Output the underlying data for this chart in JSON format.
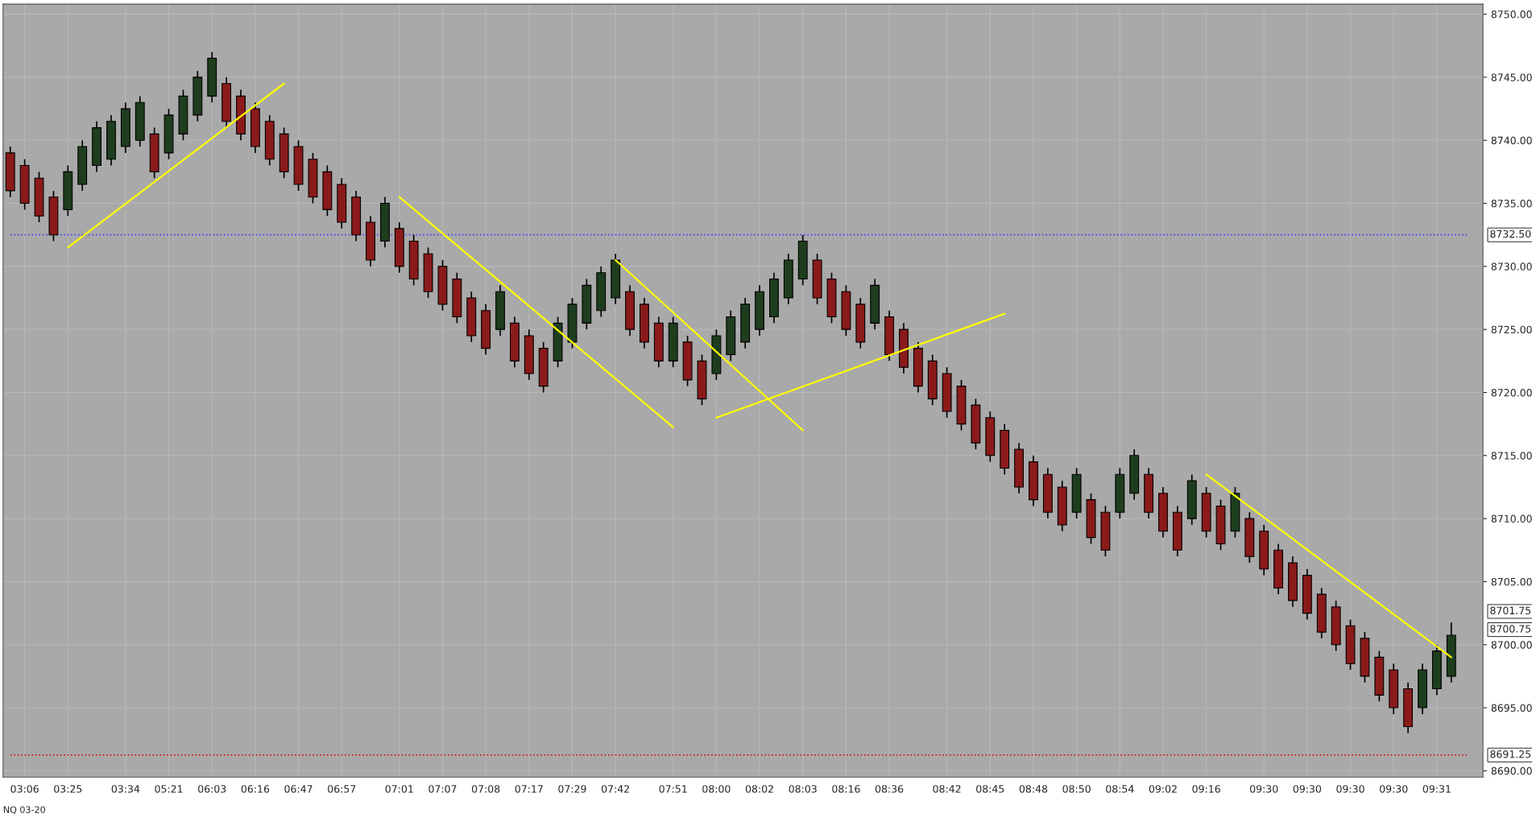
{
  "chart_data": {
    "type": "candlestick",
    "categories": [
      null,
      "03:06",
      null,
      null,
      "03:25",
      null,
      null,
      null,
      "03:34",
      null,
      null,
      "05:21",
      null,
      null,
      "06:03",
      null,
      null,
      "06:16",
      null,
      null,
      "06:47",
      null,
      null,
      "06:57",
      null,
      null,
      null,
      "07:01",
      null,
      null,
      "07:07",
      null,
      null,
      "07:08",
      null,
      null,
      "07:17",
      null,
      null,
      "07:29",
      null,
      null,
      "07:42",
      null,
      null,
      null,
      "07:51",
      null,
      null,
      "08:00",
      null,
      null,
      "08:02",
      null,
      null,
      "08:03",
      null,
      null,
      "08:16",
      null,
      null,
      "08:36",
      null,
      null,
      null,
      "08:42",
      null,
      null,
      "08:45",
      null,
      null,
      "08:48",
      null,
      null,
      "08:50",
      null,
      null,
      "08:54",
      null,
      null,
      "09:02",
      null,
      null,
      "09:16",
      null,
      null,
      null,
      "09:30",
      null,
      null,
      "09:30",
      null,
      null,
      "09:30",
      null,
      null,
      "09:30",
      null,
      null,
      "09:31",
      null
    ],
    "ohlc": [
      [
        8739,
        8739.5,
        8735.5,
        8736
      ],
      [
        8738,
        8738.5,
        8734.5,
        8735
      ],
      [
        8737,
        8737.5,
        8733.5,
        8734
      ],
      [
        8735.5,
        8736,
        8732,
        8732.5
      ],
      [
        8734.5,
        8738,
        8734,
        8737.5
      ],
      [
        8736.5,
        8740,
        8736,
        8739.5
      ],
      [
        8738,
        8741.5,
        8737.5,
        8741
      ],
      [
        8738.5,
        8742,
        8738,
        8741.5
      ],
      [
        8739.5,
        8743,
        8739,
        8742.5
      ],
      [
        8740,
        8743.5,
        8739.5,
        8743
      ],
      [
        8740.5,
        8741,
        8737,
        8737.5
      ],
      [
        8739,
        8742.5,
        8738.5,
        8742
      ],
      [
        8740.5,
        8744,
        8740,
        8743.5
      ],
      [
        8742,
        8745.5,
        8741.5,
        8745
      ],
      [
        8743.5,
        8747,
        8743,
        8746.5
      ],
      [
        8744.5,
        8745,
        8741,
        8741.5
      ],
      [
        8743.5,
        8744,
        8740,
        8740.5
      ],
      [
        8742.5,
        8743,
        8739,
        8739.5
      ],
      [
        8741.5,
        8742,
        8738,
        8738.5
      ],
      [
        8740.5,
        8741,
        8737,
        8737.5
      ],
      [
        8739.5,
        8740,
        8736,
        8736.5
      ],
      [
        8738.5,
        8739,
        8735,
        8735.5
      ],
      [
        8737.5,
        8738,
        8734,
        8734.5
      ],
      [
        8736.5,
        8737,
        8733,
        8733.5
      ],
      [
        8735.5,
        8736,
        8732,
        8732.5
      ],
      [
        8733.5,
        8734,
        8730,
        8730.5
      ],
      [
        8732,
        8735.5,
        8731.5,
        8735
      ],
      [
        8733,
        8733.5,
        8729.5,
        8730
      ],
      [
        8732,
        8732.5,
        8728.5,
        8729
      ],
      [
        8731,
        8731.5,
        8727.5,
        8728
      ],
      [
        8730,
        8730.5,
        8726.5,
        8727
      ],
      [
        8729,
        8729.5,
        8725.5,
        8726
      ],
      [
        8727.5,
        8728,
        8724,
        8724.5
      ],
      [
        8726.5,
        8727,
        8723,
        8723.5
      ],
      [
        8725,
        8728.5,
        8724.5,
        8728
      ],
      [
        8725.5,
        8726,
        8722,
        8722.5
      ],
      [
        8724.5,
        8725,
        8721,
        8721.5
      ],
      [
        8723.5,
        8724,
        8720,
        8720.5
      ],
      [
        8722.5,
        8726,
        8722,
        8725.5
      ],
      [
        8724,
        8727.5,
        8723.5,
        8727
      ],
      [
        8725.5,
        8729,
        8725,
        8728.5
      ],
      [
        8726.5,
        8730,
        8726,
        8729.5
      ],
      [
        8727.5,
        8731,
        8727,
        8730.5
      ],
      [
        8728,
        8728.5,
        8724.5,
        8725
      ],
      [
        8727,
        8727.5,
        8723.5,
        8724
      ],
      [
        8725.5,
        8726,
        8722,
        8722.5
      ],
      [
        8722.5,
        8726,
        8722,
        8725.5
      ],
      [
        8724,
        8724.5,
        8720.5,
        8721
      ],
      [
        8722.5,
        8723,
        8719,
        8719.5
      ],
      [
        8721.5,
        8725,
        8721,
        8724.5
      ],
      [
        8723,
        8726.5,
        8722.5,
        8726
      ],
      [
        8724,
        8727.5,
        8723.5,
        8727
      ],
      [
        8725,
        8728.5,
        8724.5,
        8728
      ],
      [
        8726,
        8729.5,
        8725.5,
        8729
      ],
      [
        8727.5,
        8731,
        8727,
        8730.5
      ],
      [
        8729,
        8732.5,
        8728.5,
        8732
      ],
      [
        8730.5,
        8731,
        8727,
        8727.5
      ],
      [
        8729,
        8729.5,
        8725.5,
        8726
      ],
      [
        8728,
        8728.5,
        8724.5,
        8725
      ],
      [
        8727,
        8727.5,
        8723.5,
        8724
      ],
      [
        8725.5,
        8729,
        8725,
        8728.5
      ],
      [
        8726,
        8726.5,
        8722.5,
        8723
      ],
      [
        8725,
        8725.5,
        8721.5,
        8722
      ],
      [
        8723.5,
        8724,
        8720,
        8720.5
      ],
      [
        8722.5,
        8723,
        8719,
        8719.5
      ],
      [
        8721.5,
        8722,
        8718,
        8718.5
      ],
      [
        8720.5,
        8721,
        8717,
        8717.5
      ],
      [
        8719,
        8719.5,
        8715.5,
        8716
      ],
      [
        8718,
        8718.5,
        8714.5,
        8715
      ],
      [
        8717,
        8717.5,
        8713.5,
        8714
      ],
      [
        8715.5,
        8716,
        8712,
        8712.5
      ],
      [
        8714.5,
        8715,
        8711,
        8711.5
      ],
      [
        8713.5,
        8714,
        8710,
        8710.5
      ],
      [
        8712.5,
        8713,
        8709,
        8709.5
      ],
      [
        8710.5,
        8714,
        8710,
        8713.5
      ],
      [
        8711.5,
        8712,
        8708,
        8708.5
      ],
      [
        8710.5,
        8711,
        8707,
        8707.5
      ],
      [
        8710.5,
        8714,
        8710,
        8713.5
      ],
      [
        8712,
        8715.5,
        8711.5,
        8715
      ],
      [
        8713.5,
        8714,
        8710,
        8710.5
      ],
      [
        8712,
        8712.5,
        8708.5,
        8709
      ],
      [
        8710.5,
        8711,
        8707,
        8707.5
      ],
      [
        8710,
        8713.5,
        8709.5,
        8713
      ],
      [
        8712,
        8712.5,
        8708.5,
        8709
      ],
      [
        8711,
        8711.5,
        8707.5,
        8708
      ],
      [
        8709,
        8712.5,
        8708.5,
        8712
      ],
      [
        8710,
        8710.5,
        8706.5,
        8707
      ],
      [
        8709,
        8709.5,
        8705.5,
        8706
      ],
      [
        8707.5,
        8708,
        8704,
        8704.5
      ],
      [
        8706.5,
        8707,
        8703,
        8703.5
      ],
      [
        8705.5,
        8706,
        8702,
        8702.5
      ],
      [
        8704,
        8704.5,
        8700.5,
        8701
      ],
      [
        8703,
        8703.5,
        8699.5,
        8700
      ],
      [
        8701.5,
        8702,
        8698,
        8698.5
      ],
      [
        8700.5,
        8701,
        8697,
        8697.5
      ],
      [
        8699,
        8699.5,
        8695.5,
        8696
      ],
      [
        8698,
        8698.5,
        8694.5,
        8695
      ],
      [
        8696.5,
        8697,
        8693,
        8693.5
      ],
      [
        8695,
        8698.5,
        8694.5,
        8698
      ],
      [
        8696.5,
        8700,
        8696,
        8699.5
      ],
      [
        8697.5,
        8701.75,
        8697,
        8700.75
      ]
    ],
    "colors": [
      "#8b1a1a",
      "#8b1a1a",
      "#8b1a1a",
      "#8b1a1a",
      "#1e3d1e",
      "#1e3d1e",
      "#1e3d1e",
      "#1e3d1e",
      "#1e3d1e",
      "#1e3d1e",
      "#8b1a1a",
      "#1e3d1e",
      "#1e3d1e",
      "#1e3d1e",
      "#1e3d1e",
      "#8b1a1a",
      "#8b1a1a",
      "#8b1a1a",
      "#8b1a1a",
      "#8b1a1a",
      "#8b1a1a",
      "#8b1a1a",
      "#8b1a1a",
      "#8b1a1a",
      "#8b1a1a",
      "#8b1a1a",
      "#1e3d1e",
      "#8b1a1a",
      "#8b1a1a",
      "#8b1a1a",
      "#8b1a1a",
      "#8b1a1a",
      "#8b1a1a",
      "#8b1a1a",
      "#1e3d1e",
      "#8b1a1a",
      "#8b1a1a",
      "#8b1a1a",
      "#1e3d1e",
      "#1e3d1e",
      "#1e3d1e",
      "#1e3d1e",
      "#1e3d1e",
      "#8b1a1a",
      "#8b1a1a",
      "#8b1a1a",
      "#1e3d1e",
      "#8b1a1a",
      "#8b1a1a",
      "#1e3d1e",
      "#1e3d1e",
      "#1e3d1e",
      "#1e3d1e",
      "#1e3d1e",
      "#1e3d1e",
      "#1e3d1e",
      "#8b1a1a",
      "#8b1a1a",
      "#8b1a1a",
      "#8b1a1a",
      "#1e3d1e",
      "#8b1a1a",
      "#8b1a1a",
      "#8b1a1a",
      "#8b1a1a",
      "#8b1a1a",
      "#8b1a1a",
      "#8b1a1a",
      "#8b1a1a",
      "#8b1a1a",
      "#8b1a1a",
      "#8b1a1a",
      "#8b1a1a",
      "#8b1a1a",
      "#1e3d1e",
      "#8b1a1a",
      "#8b1a1a",
      "#1e3d1e",
      "#1e3d1e",
      "#8b1a1a",
      "#8b1a1a",
      "#8b1a1a",
      "#1e3d1e",
      "#8b1a1a",
      "#8b1a1a",
      "#1e3d1e",
      "#8b1a1a",
      "#8b1a1a",
      "#8b1a1a",
      "#8b1a1a",
      "#8b1a1a",
      "#8b1a1a",
      "#8b1a1a",
      "#8b1a1a",
      "#8b1a1a",
      "#8b1a1a",
      "#8b1a1a",
      "#8b1a1a",
      "#1e3d1e",
      "#1e3d1e",
      "#1e3d1e"
    ],
    "series": [
      {
        "type": "line",
        "color": "#ffff00",
        "values": [
          null,
          null,
          null,
          null,
          8731.5,
          null,
          null,
          null,
          null,
          null,
          null,
          null,
          null,
          null,
          null,
          null,
          null,
          null,
          null,
          8744.5,
          null,
          null,
          null,
          null,
          null,
          null,
          null,
          null,
          null,
          null,
          null,
          null,
          null,
          null,
          null,
          null,
          null,
          null,
          null,
          null,
          null,
          null,
          null,
          null,
          null,
          null,
          null,
          null,
          null,
          null,
          null,
          null,
          null,
          null,
          null,
          null,
          null,
          null,
          null,
          null,
          null,
          null,
          null,
          null,
          null,
          null,
          null,
          null,
          null,
          null,
          null,
          null,
          null,
          null,
          null,
          null,
          null,
          null,
          null,
          null,
          null,
          null,
          null,
          null,
          null,
          null,
          null,
          null,
          null,
          null,
          null,
          null,
          null,
          null,
          null,
          null,
          null,
          null,
          null,
          null,
          null
        ]
      },
      {
        "type": "line",
        "color": "#ffff00",
        "values": [
          null,
          null,
          null,
          null,
          null,
          null,
          null,
          null,
          null,
          null,
          null,
          null,
          null,
          null,
          null,
          null,
          null,
          null,
          null,
          null,
          null,
          null,
          null,
          null,
          null,
          null,
          null,
          8735.5,
          null,
          null,
          null,
          null,
          null,
          null,
          null,
          null,
          null,
          null,
          null,
          null,
          null,
          null,
          null,
          null,
          null,
          null,
          8717.25,
          null,
          null,
          null,
          null,
          null,
          null,
          null,
          null,
          null,
          null,
          null,
          null,
          null,
          null,
          null,
          null,
          null,
          null,
          null,
          null,
          null,
          null,
          null,
          null,
          null,
          null,
          null,
          null,
          null,
          null,
          null,
          null,
          null,
          null,
          null,
          null,
          null,
          null,
          null,
          null,
          null,
          null,
          null,
          null,
          null,
          null,
          null,
          null,
          null,
          null,
          null,
          null,
          null,
          null
        ]
      },
      {
        "type": "line",
        "color": "#ffff00",
        "values": [
          null,
          null,
          null,
          null,
          null,
          null,
          null,
          null,
          null,
          null,
          null,
          null,
          null,
          null,
          null,
          null,
          null,
          null,
          null,
          null,
          null,
          null,
          null,
          null,
          null,
          null,
          null,
          null,
          null,
          null,
          null,
          null,
          null,
          null,
          null,
          null,
          null,
          null,
          null,
          null,
          null,
          null,
          8730.5,
          null,
          null,
          null,
          null,
          null,
          null,
          null,
          null,
          null,
          null,
          null,
          null,
          8717,
          null,
          null,
          null,
          null,
          null,
          null,
          null,
          null,
          null,
          null,
          null,
          null,
          null,
          null,
          null,
          null,
          null,
          null,
          null,
          null,
          null,
          null,
          null,
          null,
          null,
          null,
          null,
          null,
          null,
          null,
          null,
          null,
          null,
          null,
          null,
          null,
          null,
          null,
          null,
          null,
          null,
          null,
          null,
          null,
          null
        ]
      },
      {
        "type": "line",
        "color": "#ffff00",
        "values": [
          null,
          null,
          null,
          null,
          null,
          null,
          null,
          null,
          null,
          null,
          null,
          null,
          null,
          null,
          null,
          null,
          null,
          null,
          null,
          null,
          null,
          null,
          null,
          null,
          null,
          null,
          null,
          null,
          null,
          null,
          null,
          null,
          null,
          null,
          null,
          null,
          null,
          null,
          null,
          null,
          null,
          null,
          null,
          null,
          null,
          null,
          null,
          null,
          null,
          8718,
          null,
          null,
          null,
          null,
          null,
          null,
          null,
          null,
          null,
          null,
          null,
          null,
          null,
          null,
          null,
          null,
          null,
          null,
          null,
          8726.25,
          null,
          null,
          null,
          null,
          null,
          null,
          null,
          null,
          null,
          null,
          null,
          null,
          null,
          null,
          null,
          null,
          null,
          null,
          null,
          null,
          null,
          null,
          null,
          null,
          null,
          null,
          null,
          null,
          null,
          null,
          null
        ]
      },
      {
        "type": "line",
        "color": "#ffff00",
        "values": [
          null,
          null,
          null,
          null,
          null,
          null,
          null,
          null,
          null,
          null,
          null,
          null,
          null,
          null,
          null,
          null,
          null,
          null,
          null,
          null,
          null,
          null,
          null,
          null,
          null,
          null,
          null,
          null,
          null,
          null,
          null,
          null,
          null,
          null,
          null,
          null,
          null,
          null,
          null,
          null,
          null,
          null,
          null,
          null,
          null,
          null,
          null,
          null,
          null,
          null,
          null,
          null,
          null,
          null,
          null,
          null,
          null,
          null,
          null,
          null,
          null,
          null,
          null,
          null,
          null,
          null,
          null,
          null,
          null,
          null,
          null,
          null,
          null,
          null,
          null,
          null,
          null,
          null,
          null,
          null,
          null,
          null,
          null,
          8713.5,
          null,
          null,
          null,
          null,
          null,
          null,
          null,
          null,
          null,
          null,
          null,
          null,
          null,
          null,
          null,
          null,
          8699
        ]
      }
    ],
    "ylim": [
      8689.5,
      8750.8
    ],
    "yticks": [
      {
        "value": 8690,
        "label": "8690.00"
      },
      {
        "value": 8695,
        "label": "8695.00"
      },
      {
        "value": 8700,
        "label": "8700.00"
      },
      {
        "value": 8705,
        "label": "8705.00"
      },
      {
        "value": 8710,
        "label": "8710.00"
      },
      {
        "value": 8715,
        "label": "8715.00"
      },
      {
        "value": 8720,
        "label": "8720.00"
      },
      {
        "value": 8725,
        "label": "8725.00"
      },
      {
        "value": 8730,
        "label": "8730.00"
      },
      {
        "value": 8735,
        "label": "8735.00"
      },
      {
        "value": 8740,
        "label": "8740.00"
      },
      {
        "value": 8745,
        "label": "8745.00"
      },
      {
        "value": 8750,
        "label": "8750.00"
      }
    ],
    "ref_lines": [
      {
        "axis": "y",
        "value": 8732.5,
        "label": "8732.50",
        "color": "#4040ff",
        "line_style": "dotted"
      },
      {
        "axis": "y",
        "value": 8691.25,
        "label": "8691.25",
        "color": "#e00000",
        "line_style": "dotted"
      }
    ],
    "annotations": [
      "8701.75",
      "8700.75",
      "NQ 03-20"
    ],
    "grid": true
  }
}
